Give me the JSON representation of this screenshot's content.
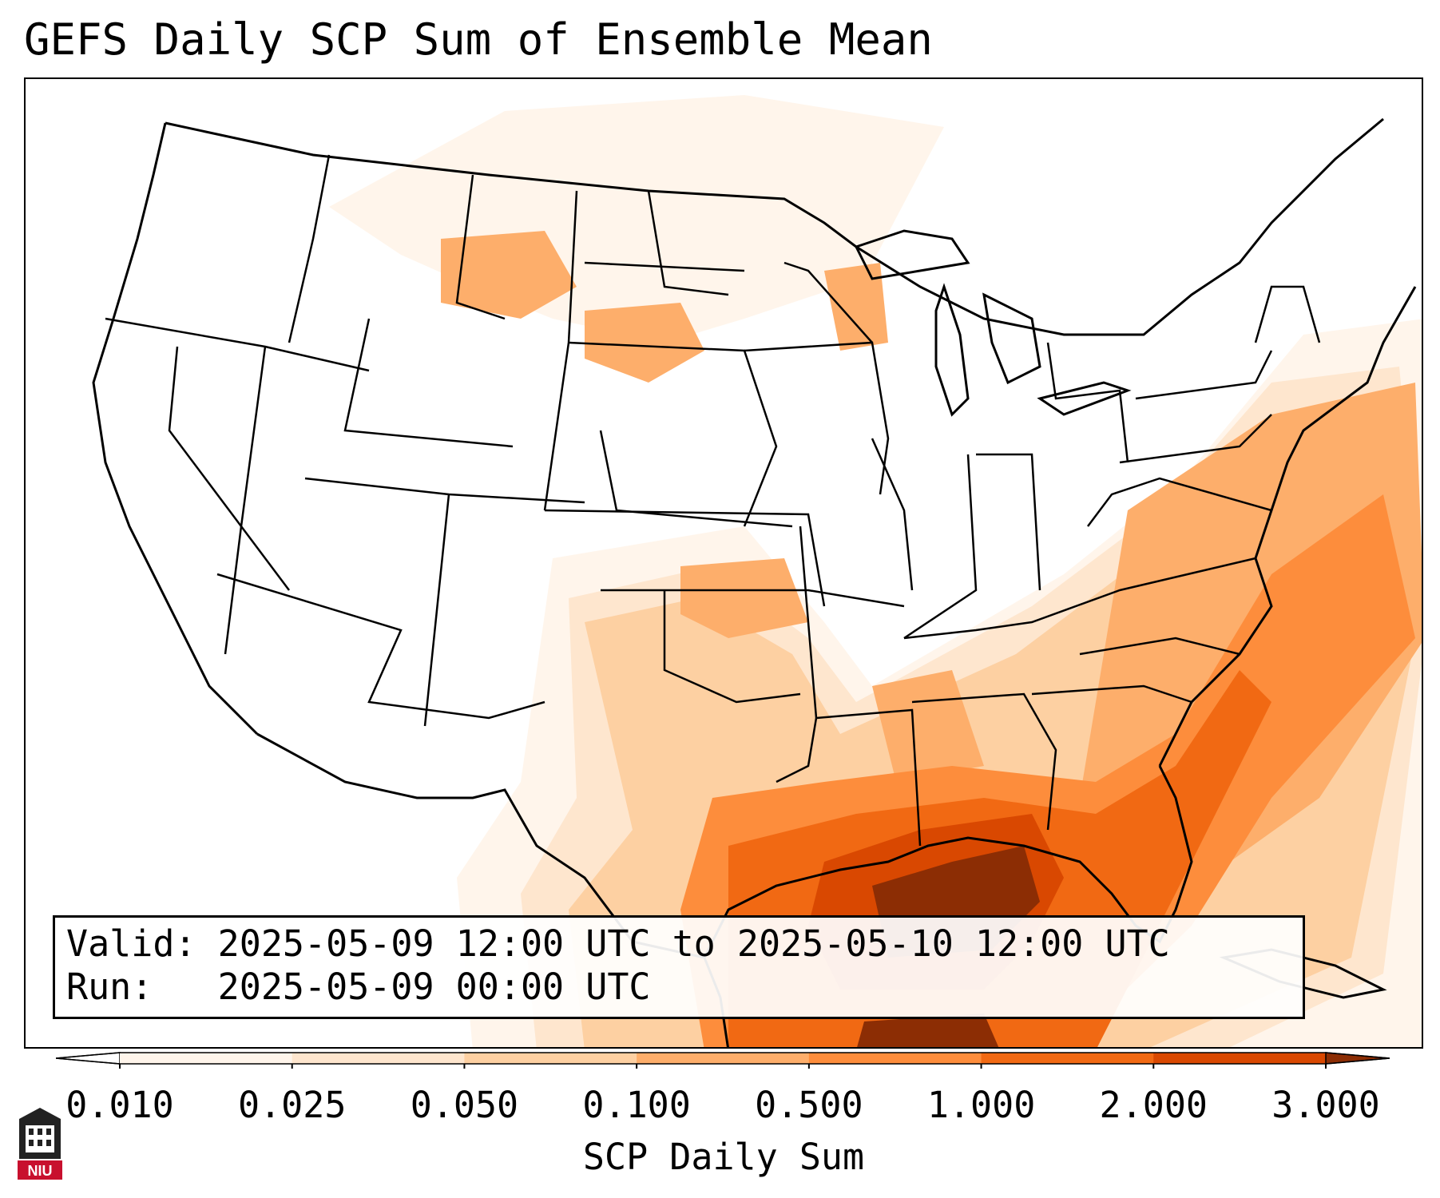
{
  "title": "GEFS Daily SCP Sum of Ensemble Mean",
  "info_box": {
    "valid_label": "Valid:",
    "valid_value": "2025-05-09 12:00 UTC to 2025-05-10 12:00 UTC",
    "run_label": "Run:",
    "run_value": "2025-05-09 00:00 UTC"
  },
  "colorbar": {
    "label": "SCP Daily Sum",
    "ticks": [
      "0.010",
      "0.025",
      "0.050",
      "0.100",
      "0.500",
      "1.000",
      "2.000",
      "3.000"
    ],
    "colors": [
      "#fff5eb",
      "#fee6ce",
      "#fdd0a2",
      "#fdae6b",
      "#fd8d3c",
      "#f16913",
      "#d94801",
      "#8c2d04"
    ],
    "extend": "both"
  },
  "logo": {
    "text": "NIU",
    "color": "#c8102e"
  },
  "map": {
    "region": "CONUS",
    "shading_regions": [
      {
        "area": "Gulf of Mexico core",
        "level": "3.000"
      },
      {
        "area": "Gulf of Mexico",
        "level": "2.000"
      },
      {
        "area": "Southeast US / Carolinas",
        "level": "1.000"
      },
      {
        "area": "Atlantic coast",
        "level": "0.500"
      },
      {
        "area": "Southern Plains / Oklahoma",
        "level": "0.100"
      },
      {
        "area": "Northern Plains / Montana / Dakotas",
        "level": "0.100"
      },
      {
        "area": "Upper Midwest / Wisconsin",
        "level": "0.100"
      }
    ]
  }
}
